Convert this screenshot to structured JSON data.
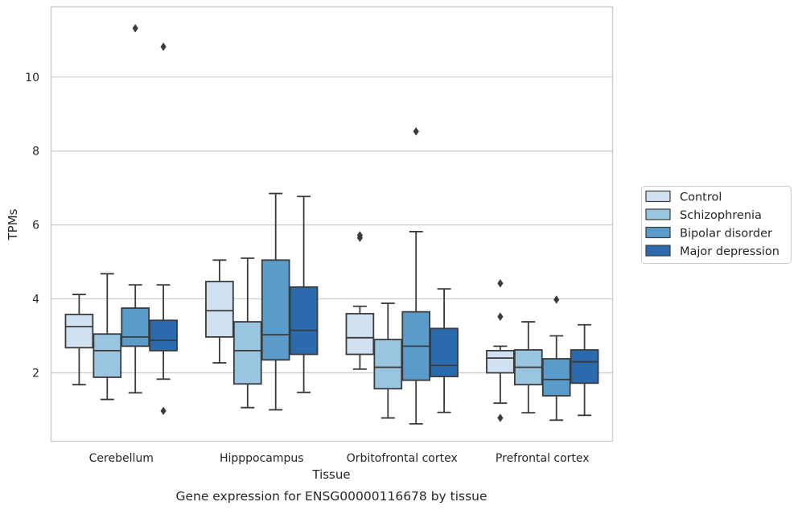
{
  "chart_data": {
    "type": "box",
    "xlabel": "Tissue",
    "ylabel": "TPMs",
    "caption": "Gene expression for ENSG00000116678 by tissue",
    "ylim": [
      0.15,
      11.9
    ],
    "yticks": [
      2,
      4,
      6,
      8,
      10
    ],
    "grid": "horizontal",
    "legend_placement": "right",
    "categories": [
      "Cerebellum",
      "Hipppocampus",
      "Orbitofrontal cortex",
      "Prefrontal cortex"
    ],
    "series": [
      {
        "name": "Control",
        "color": "#d0e1f2",
        "boxes": [
          {
            "whislo": 1.68,
            "q1": 2.68,
            "med": 3.25,
            "q3": 3.58,
            "whishi": 4.12,
            "fliers": []
          },
          {
            "whislo": 2.27,
            "q1": 2.97,
            "med": 3.68,
            "q3": 4.47,
            "whishi": 5.05,
            "fliers": []
          },
          {
            "whislo": 2.1,
            "q1": 2.5,
            "med": 2.95,
            "q3": 3.6,
            "whishi": 3.8,
            "fliers": [
              5.65,
              5.72
            ]
          },
          {
            "whislo": 1.18,
            "q1": 2.0,
            "med": 2.4,
            "q3": 2.6,
            "whishi": 2.72,
            "fliers": [
              0.78,
              3.52,
              4.42
            ]
          }
        ]
      },
      {
        "name": "Schizophrenia",
        "color": "#9ac5e0",
        "boxes": [
          {
            "whislo": 1.28,
            "q1": 1.88,
            "med": 2.6,
            "q3": 3.05,
            "whishi": 4.68,
            "fliers": []
          },
          {
            "whislo": 1.06,
            "q1": 1.7,
            "med": 2.6,
            "q3": 3.38,
            "whishi": 5.1,
            "fliers": []
          },
          {
            "whislo": 0.78,
            "q1": 1.57,
            "med": 2.15,
            "q3": 2.9,
            "whishi": 3.88,
            "fliers": []
          },
          {
            "whislo": 0.92,
            "q1": 1.68,
            "med": 2.15,
            "q3": 2.62,
            "whishi": 3.38,
            "fliers": []
          }
        ]
      },
      {
        "name": "Bipolar disorder",
        "color": "#5b9bc9",
        "boxes": [
          {
            "whislo": 1.46,
            "q1": 2.72,
            "med": 2.97,
            "q3": 3.75,
            "whishi": 4.38,
            "fliers": [
              11.32
            ]
          },
          {
            "whislo": 1.0,
            "q1": 2.35,
            "med": 3.03,
            "q3": 5.05,
            "whishi": 6.85,
            "fliers": []
          },
          {
            "whislo": 0.62,
            "q1": 1.8,
            "med": 2.72,
            "q3": 3.65,
            "whishi": 5.82,
            "fliers": [
              8.53
            ]
          },
          {
            "whislo": 0.72,
            "q1": 1.38,
            "med": 1.82,
            "q3": 2.38,
            "whishi": 3.0,
            "fliers": [
              3.98
            ]
          }
        ]
      },
      {
        "name": "Major depression",
        "color": "#2a6aad",
        "boxes": [
          {
            "whislo": 1.83,
            "q1": 2.6,
            "med": 2.88,
            "q3": 3.42,
            "whishi": 4.38,
            "fliers": [
              0.97,
              10.82
            ]
          },
          {
            "whislo": 1.47,
            "q1": 2.5,
            "med": 3.15,
            "q3": 4.32,
            "whishi": 6.77,
            "fliers": []
          },
          {
            "whislo": 0.93,
            "q1": 1.9,
            "med": 2.2,
            "q3": 3.2,
            "whishi": 4.27,
            "fliers": []
          },
          {
            "whislo": 0.85,
            "q1": 1.72,
            "med": 2.3,
            "q3": 2.62,
            "whishi": 3.3,
            "fliers": []
          }
        ]
      }
    ]
  }
}
